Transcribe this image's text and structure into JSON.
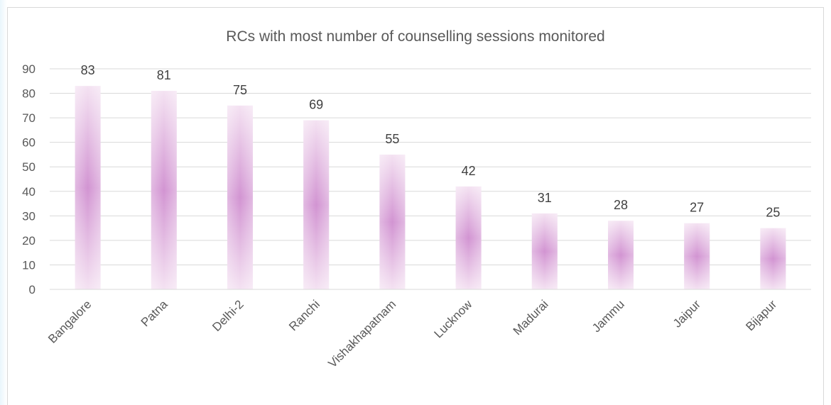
{
  "chart_data": {
    "type": "bar",
    "title": "RCs with most number of counselling sessions monitored",
    "xlabel": "",
    "ylabel": "",
    "categories": [
      "Bangalore",
      "Patna",
      "Delhi-2",
      "Ranchi",
      "Vishakhapatnam",
      "Lucknow",
      "Madurai",
      "Jammu",
      "Jaipur",
      "Bijapur"
    ],
    "values": [
      83,
      81,
      75,
      69,
      55,
      42,
      31,
      28,
      27,
      25
    ],
    "ylim": [
      0,
      90
    ],
    "yticks": [
      "0",
      "10",
      "20",
      "30",
      "40",
      "50",
      "60",
      "70",
      "80",
      "90"
    ],
    "grid": true,
    "legend": "none",
    "colors": {
      "bar_edge": "#f3e1f1",
      "bar_center": "#cf8fcf",
      "grid": "#d9d9d9"
    }
  }
}
